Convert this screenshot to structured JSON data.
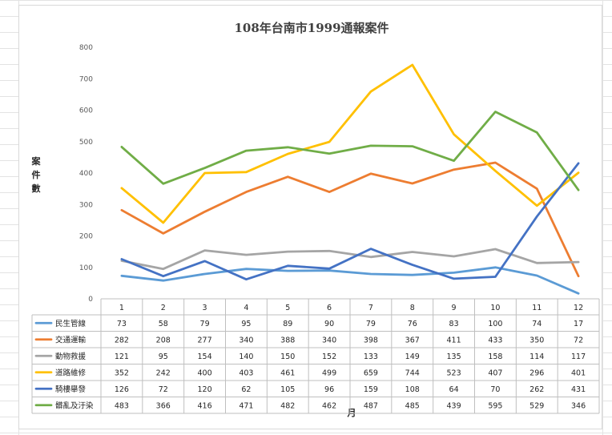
{
  "chart_data": {
    "type": "line",
    "title": "108年台南市1999通報案件",
    "xlabel": "月",
    "ylabel": "案件數",
    "ylim": [
      0,
      800
    ],
    "yticks": [
      0,
      100,
      200,
      300,
      400,
      500,
      600,
      700,
      800
    ],
    "categories": [
      "1",
      "2",
      "3",
      "4",
      "5",
      "6",
      "7",
      "8",
      "9",
      "10",
      "11",
      "12"
    ],
    "grid": false,
    "legend": "data-table",
    "series": [
      {
        "name": "民生管線",
        "color": "#5B9BD5",
        "values": [
          73,
          58,
          79,
          95,
          89,
          90,
          79,
          76,
          83,
          100,
          74,
          17
        ]
      },
      {
        "name": "交通運輸",
        "color": "#ED7D31",
        "values": [
          282,
          208,
          277,
          340,
          388,
          340,
          398,
          367,
          411,
          433,
          350,
          72
        ]
      },
      {
        "name": "動物救援",
        "color": "#A5A5A5",
        "values": [
          121,
          95,
          154,
          140,
          150,
          152,
          133,
          149,
          135,
          158,
          114,
          117
        ]
      },
      {
        "name": "道路維修",
        "color": "#FFC000",
        "values": [
          352,
          242,
          400,
          403,
          461,
          499,
          659,
          744,
          523,
          407,
          296,
          401
        ]
      },
      {
        "name": "騎樓舉發",
        "color": "#4472C4",
        "values": [
          126,
          72,
          120,
          62,
          105,
          96,
          159,
          108,
          64,
          70,
          262,
          431
        ]
      },
      {
        "name": "髒亂及汙染",
        "color": "#70AD47",
        "values": [
          483,
          366,
          416,
          471,
          482,
          462,
          487,
          485,
          439,
          595,
          529,
          346
        ]
      }
    ]
  }
}
